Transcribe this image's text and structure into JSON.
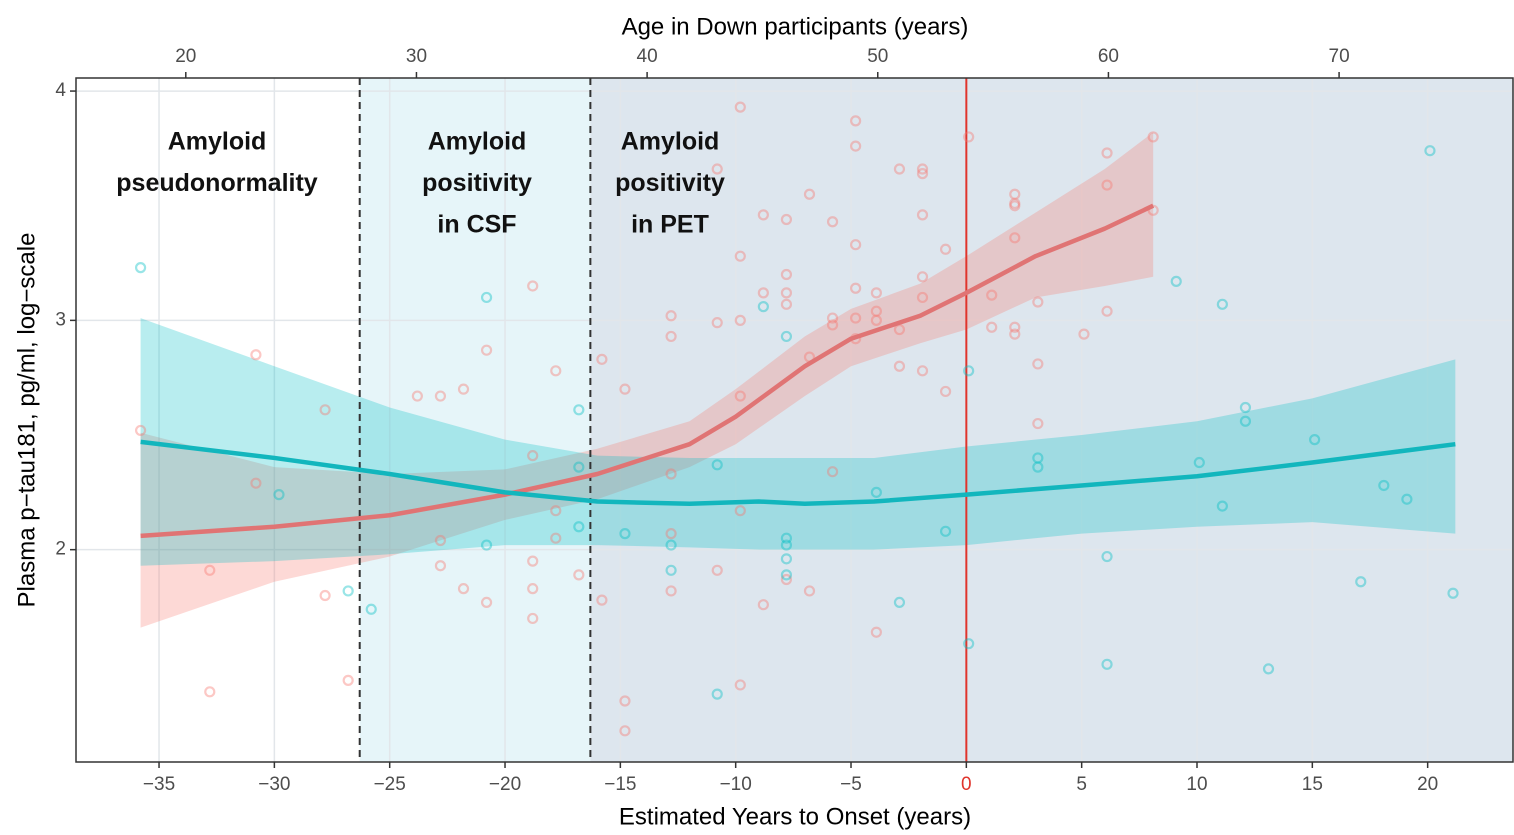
{
  "chart_data": {
    "type": "scatter",
    "top_axis_title": "Age in Down participants (years)",
    "x_axis_title": "Estimated Years to Onset (years)",
    "y_axis_title": "Plasma p−tau181, pg/ml, log−scale",
    "xlim": [
      -38.6,
      23.7
    ],
    "xticks": [
      {
        "value": -35,
        "label": "−35"
      },
      {
        "value": -30,
        "label": "−30"
      },
      {
        "value": -25,
        "label": "−25"
      },
      {
        "value": -20,
        "label": "−20"
      },
      {
        "value": -15,
        "label": "−15"
      },
      {
        "value": -10,
        "label": "−10"
      },
      {
        "value": -5,
        "label": "−5"
      },
      0,
      5,
      10,
      15,
      20
    ],
    "x2lim": [
      15.24,
      77.54
    ],
    "x2ticks": [
      20,
      30,
      40,
      50,
      60,
      70
    ],
    "ylim": [
      1.074,
      4.057
    ],
    "yticks": [
      2,
      3,
      4
    ],
    "grid": true,
    "boundaries": [
      -26.3,
      -16.3
    ],
    "region_colors": [
      "#ffffff",
      "#e6f5f9",
      "#dde6ee"
    ],
    "region_labels": [
      [
        "Amyloid",
        "pseudonormality"
      ],
      [
        "Amyloid",
        "positivity",
        "in CSF"
      ],
      [
        "Amyloid",
        "positivity",
        "in PET"
      ]
    ],
    "onset": 0,
    "onset_color": "#e0342c",
    "series": [
      {
        "color": "#f8766d",
        "x": [
          -35.8,
          -32.8,
          -32.8,
          -30.8,
          -30.8,
          -27.8,
          -27.8,
          -26.8,
          -23.8,
          -22.8,
          -22.8,
          -22.8,
          -21.8,
          -21.8,
          -20.8,
          -20.8,
          -18.8,
          -18.8,
          -18.8,
          -18.8,
          -18.8,
          -17.8,
          -17.8,
          -17.8,
          -16.8,
          -15.8,
          -15.8,
          -14.8,
          -14.8,
          -14.8,
          -12.8,
          -12.8,
          -12.8,
          -12.8,
          -12.8,
          -10.8,
          -10.8,
          -10.8,
          -9.8,
          -9.8,
          -9.8,
          -9.8,
          -9.8,
          -9.8,
          -8.8,
          -8.8,
          -8.8,
          -7.8,
          -7.8,
          -7.8,
          -7.8,
          -7.8,
          -6.8,
          -6.8,
          -6.8,
          -5.8,
          -5.8,
          -5.8,
          -5.8,
          -4.8,
          -4.8,
          -4.8,
          -4.8,
          -4.8,
          -4.8,
          -3.9,
          -3.9,
          -3.9,
          -3.9,
          -2.9,
          -2.9,
          -2.9,
          -1.9,
          -1.9,
          -1.9,
          -1.9,
          -1.9,
          -1.9,
          -0.9,
          -0.9,
          0.1,
          1.1,
          1.1,
          2.1,
          2.1,
          2.1,
          2.1,
          2.1,
          2.1,
          3.1,
          3.1,
          3.1,
          5.1,
          6.1,
          6.1,
          6.1,
          8.1,
          8.1
        ],
        "values": [
          2.52,
          1.38,
          1.91,
          2.85,
          2.29,
          2.61,
          1.8,
          1.43,
          2.67,
          2.67,
          2.04,
          1.93,
          2.7,
          1.83,
          2.87,
          1.77,
          3.15,
          2.41,
          1.95,
          1.83,
          1.7,
          2.78,
          2.05,
          2.17,
          1.89,
          2.83,
          1.78,
          2.7,
          1.34,
          1.21,
          3.02,
          2.93,
          2.33,
          2.07,
          1.82,
          3.66,
          2.99,
          1.91,
          3.93,
          3.28,
          3.0,
          2.67,
          2.17,
          1.41,
          3.46,
          3.12,
          1.76,
          3.44,
          3.2,
          3.12,
          3.07,
          1.87,
          3.55,
          2.84,
          1.82,
          3.43,
          3.01,
          2.98,
          2.34,
          3.87,
          3.76,
          3.33,
          3.14,
          3.01,
          2.92,
          3.12,
          3.04,
          3.0,
          1.64,
          3.66,
          2.96,
          2.8,
          3.66,
          3.64,
          3.46,
          3.19,
          3.1,
          2.78,
          3.31,
          2.69,
          3.8,
          3.11,
          2.97,
          3.55,
          3.51,
          3.5,
          3.36,
          2.97,
          2.94,
          3.08,
          2.81,
          2.55,
          2.94,
          3.73,
          3.59,
          3.04,
          3.8,
          3.48
        ]
      },
      {
        "color": "#00bfc4",
        "x": [
          -35.8,
          -29.8,
          -26.8,
          -25.8,
          -20.8,
          -20.8,
          -16.8,
          -16.8,
          -16.8,
          -14.8,
          -12.8,
          -12.8,
          -10.8,
          -10.8,
          -8.8,
          -7.8,
          -7.8,
          -7.8,
          -7.8,
          -7.8,
          -3.9,
          -2.9,
          -0.9,
          0.1,
          0.1,
          3.1,
          3.1,
          6.1,
          6.1,
          9.1,
          10.1,
          11.1,
          11.1,
          12.1,
          12.1,
          13.1,
          15.1,
          17.1,
          18.1,
          19.1,
          20.1,
          21.1
        ],
        "values": [
          3.23,
          2.24,
          1.82,
          1.74,
          3.1,
          2.02,
          2.61,
          2.36,
          2.1,
          2.07,
          2.02,
          1.91,
          2.37,
          1.37,
          3.06,
          2.93,
          2.05,
          2.02,
          1.96,
          1.89,
          2.25,
          1.77,
          2.08,
          2.78,
          1.59,
          2.4,
          2.36,
          1.97,
          1.5,
          3.17,
          2.38,
          3.07,
          2.19,
          2.62,
          2.56,
          1.48,
          2.48,
          1.86,
          2.28,
          2.22,
          3.74,
          1.81
        ]
      }
    ],
    "fits": [
      {
        "color": "#e07474",
        "band_color": "#f8766d",
        "x": [
          -35.8,
          -30,
          -25,
          -20,
          -16,
          -12,
          -10,
          -7,
          -5,
          -2,
          0,
          3,
          6,
          8.1
        ],
        "values": [
          2.06,
          2.1,
          2.15,
          2.24,
          2.33,
          2.46,
          2.58,
          2.8,
          2.92,
          3.02,
          3.12,
          3.28,
          3.4,
          3.5
        ],
        "lower": [
          1.66,
          1.86,
          1.97,
          2.13,
          2.22,
          2.36,
          2.46,
          2.67,
          2.8,
          2.9,
          2.96,
          3.1,
          3.15,
          3.19
        ],
        "upper": [
          2.51,
          2.36,
          2.33,
          2.35,
          2.44,
          2.56,
          2.7,
          2.93,
          3.05,
          3.16,
          3.28,
          3.47,
          3.66,
          3.82
        ]
      },
      {
        "color": "#12b6bd",
        "band_color": "#00bfc4",
        "x": [
          -35.8,
          -30,
          -25,
          -20,
          -16,
          -12,
          -9,
          -7,
          -4,
          0,
          5,
          10,
          15,
          21.2
        ],
        "values": [
          2.47,
          2.4,
          2.33,
          2.25,
          2.21,
          2.2,
          2.21,
          2.2,
          2.21,
          2.24,
          2.28,
          2.32,
          2.38,
          2.46
        ],
        "lower": [
          1.93,
          1.95,
          1.98,
          2.02,
          2.02,
          2.01,
          2.0,
          2.0,
          2.0,
          2.02,
          2.07,
          2.1,
          2.12,
          2.07
        ],
        "upper": [
          3.01,
          2.8,
          2.62,
          2.48,
          2.41,
          2.4,
          2.4,
          2.4,
          2.4,
          2.45,
          2.5,
          2.56,
          2.66,
          2.83
        ]
      }
    ]
  }
}
